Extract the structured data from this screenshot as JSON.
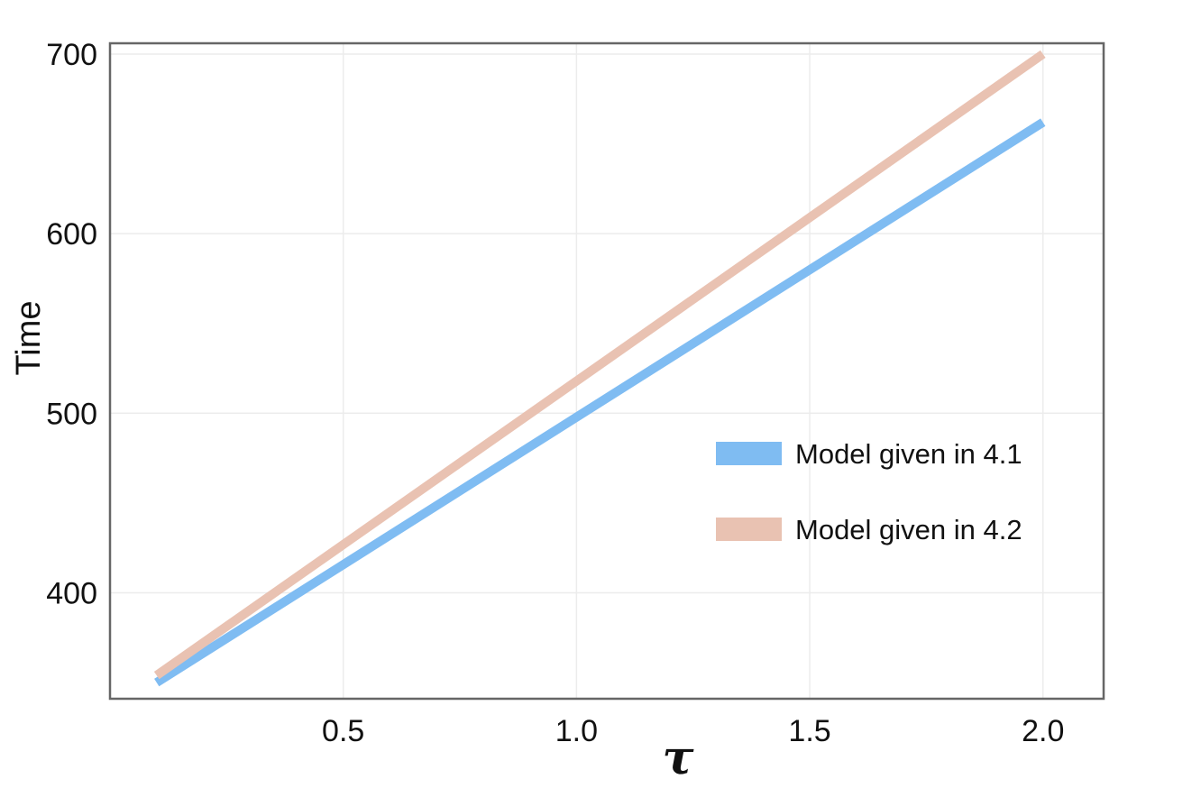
{
  "chart_data": {
    "type": "line",
    "title": "",
    "xlabel": "τ",
    "ylabel": "Time",
    "xlim": [
      0.0,
      2.13
    ],
    "ylim": [
      341,
      706
    ],
    "x_ticks": [
      0.5,
      1.0,
      1.5,
      2.0
    ],
    "x_tick_labels": [
      "0.5",
      "1.0",
      "1.5",
      "2.0"
    ],
    "y_ticks": [
      400,
      500,
      600,
      700
    ],
    "y_tick_labels": [
      "400",
      "500",
      "600",
      "700"
    ],
    "grid": true,
    "legend_position": "right",
    "series": [
      {
        "name": "Model given in 4.1",
        "color": "#7fbcf2",
        "x": [
          0.1,
          2.0
        ],
        "y": [
          350,
          662
        ]
      },
      {
        "name": "Model given in 4.2",
        "color": "#e9c2b2",
        "x": [
          0.1,
          2.0
        ],
        "y": [
          354,
          700
        ]
      }
    ]
  }
}
